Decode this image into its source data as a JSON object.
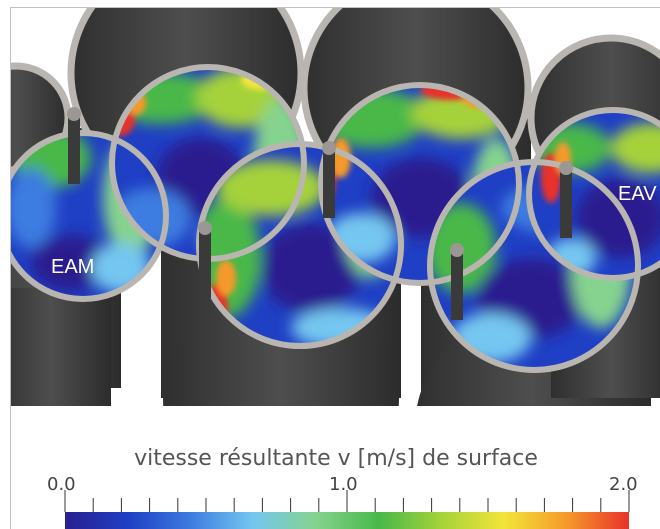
{
  "labels": {
    "left_chamber": "EAM",
    "right_chamber": "EAV"
  },
  "legend": {
    "title": "vitesse résultante v [m/s] de surface",
    "min_label": "0.0",
    "mid_label": "1.0",
    "max_label": "2.0",
    "min": 0.0,
    "max": 2.0,
    "minor_tick_step": 0.1
  },
  "colors": {
    "wall": "#4a4a4a",
    "rim": "#b9b6b1",
    "colormap": [
      "#2a1f8f",
      "#1f3fc4",
      "#3d7be0",
      "#74c6f0",
      "#86d38f",
      "#48b84a",
      "#a5d23a",
      "#f2e53a",
      "#f59a2a",
      "#e8322a"
    ]
  }
}
